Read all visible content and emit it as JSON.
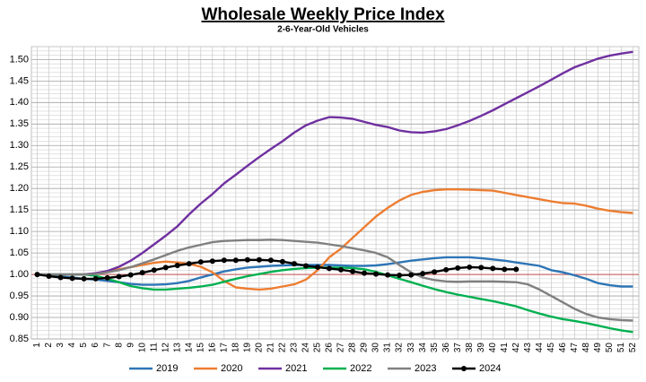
{
  "chart_data": {
    "type": "line",
    "title": "Wholesale Weekly Price Index",
    "subtitle": "2-6-Year-Old Vehicles",
    "x": [
      1,
      2,
      3,
      4,
      5,
      6,
      7,
      8,
      9,
      10,
      11,
      12,
      13,
      14,
      15,
      16,
      17,
      18,
      19,
      20,
      21,
      22,
      23,
      24,
      25,
      26,
      27,
      28,
      29,
      30,
      31,
      32,
      33,
      34,
      35,
      36,
      37,
      38,
      39,
      40,
      41,
      42,
      43,
      44,
      45,
      46,
      47,
      48,
      49,
      50,
      51,
      52
    ],
    "ylim": [
      0.85,
      1.53
    ],
    "yticks": [
      0.85,
      {
        "value": 0.9,
        "label": "0.90"
      },
      0.95,
      {
        "value": 1,
        "label": "1.00"
      },
      1.05,
      {
        "value": 1.1,
        "label": "1.10"
      },
      1.15,
      {
        "value": 1.2,
        "label": "1.20"
      },
      1.25,
      {
        "value": 1.3,
        "label": "1.30"
      },
      1.35,
      {
        "value": 1.4,
        "label": "1.40"
      },
      1.45,
      {
        "value": 1.5,
        "label": "1.50"
      }
    ],
    "grid": true,
    "minor_grid": true,
    "reference_line": 1,
    "reference_color": "#c0504d",
    "legend": "bottom",
    "series": [
      {
        "name": "2019",
        "color": "#2e75b6",
        "values": [
          1,
          0.998,
          0.995,
          0.993,
          0.99,
          0.988,
          0.985,
          0.982,
          0.978,
          0.976,
          0.976,
          0.977,
          0.98,
          0.985,
          0.993,
          1.0,
          1.007,
          1.012,
          1.016,
          1.018,
          1.02,
          1.021,
          1.022,
          1.022,
          1.022,
          1.022,
          1.021,
          1.02,
          1.02,
          1.021,
          1.024,
          1.028,
          1.032,
          1.035,
          1.038,
          1.04,
          1.04,
          1.04,
          1.038,
          1.035,
          1.032,
          1.028,
          1.024,
          1.02,
          1.01,
          1.005,
          0.998,
          0.99,
          0.98,
          0.975,
          0.972,
          0.972
        ]
      },
      {
        "name": "2020",
        "color": "#ed7d31",
        "values": [
          1,
          1,
          1,
          1,
          1,
          1.003,
          1.007,
          1.012,
          1.017,
          1.022,
          1.027,
          1.03,
          1.028,
          1.025,
          1.018,
          1.005,
          0.985,
          0.97,
          0.967,
          0.965,
          0.967,
          0.972,
          0.977,
          0.988,
          1.01,
          1.04,
          1.06,
          1.085,
          1.11,
          1.135,
          1.155,
          1.172,
          1.185,
          1.192,
          1.196,
          1.198,
          1.198,
          1.197,
          1.196,
          1.195,
          1.19,
          1.185,
          1.18,
          1.175,
          1.17,
          1.166,
          1.165,
          1.16,
          1.153,
          1.148,
          1.145,
          1.143
        ]
      },
      {
        "name": "2021",
        "color": "#7030a0",
        "values": [
          1,
          1,
          1,
          1,
          1,
          1.003,
          1.008,
          1.018,
          1.032,
          1.05,
          1.07,
          1.09,
          1.112,
          1.14,
          1.165,
          1.187,
          1.212,
          1.232,
          1.253,
          1.273,
          1.292,
          1.31,
          1.33,
          1.347,
          1.358,
          1.366,
          1.365,
          1.362,
          1.355,
          1.348,
          1.343,
          1.335,
          1.331,
          1.33,
          1.333,
          1.338,
          1.347,
          1.357,
          1.369,
          1.382,
          1.396,
          1.41,
          1.424,
          1.438,
          1.453,
          1.468,
          1.482,
          1.492,
          1.502,
          1.509,
          1.514,
          1.518
        ]
      },
      {
        "name": "2022",
        "color": "#00b050",
        "values": [
          1,
          1,
          1,
          1,
          1,
          0.997,
          0.99,
          0.982,
          0.973,
          0.968,
          0.965,
          0.965,
          0.967,
          0.969,
          0.972,
          0.976,
          0.983,
          0.99,
          0.996,
          1.001,
          1.006,
          1.01,
          1.013,
          1.015,
          1.016,
          1.016,
          1.016,
          1.015,
          1.012,
          1.006,
          0.998,
          0.99,
          0.982,
          0.974,
          0.966,
          0.959,
          0.953,
          0.948,
          0.943,
          0.938,
          0.932,
          0.926,
          0.917,
          0.909,
          0.902,
          0.896,
          0.892,
          0.887,
          0.881,
          0.875,
          0.87,
          0.866
        ]
      },
      {
        "name": "2023",
        "color": "#808080",
        "values": [
          1,
          1,
          1,
          1,
          1,
          1.001,
          1.005,
          1.01,
          1.017,
          1.026,
          1.035,
          1.045,
          1.055,
          1.063,
          1.069,
          1.075,
          1.078,
          1.079,
          1.08,
          1.08,
          1.081,
          1.08,
          1.078,
          1.076,
          1.074,
          1.07,
          1.066,
          1.061,
          1.056,
          1.05,
          1.04,
          1.022,
          1.005,
          0.993,
          0.987,
          0.984,
          0.983,
          0.984,
          0.984,
          0.984,
          0.983,
          0.982,
          0.977,
          0.965,
          0.95,
          0.935,
          0.92,
          0.908,
          0.9,
          0.896,
          0.894,
          0.893
        ]
      },
      {
        "name": "2024",
        "color": "#000000",
        "markers": true,
        "values": [
          1,
          0.996,
          0.993,
          0.991,
          0.99,
          0.99,
          0.992,
          0.995,
          0.999,
          1.004,
          1.01,
          1.016,
          1.021,
          1.025,
          1.029,
          1.031,
          1.033,
          1.033,
          1.034,
          1.034,
          1.033,
          1.03,
          1.025,
          1.02,
          1.017,
          1.014,
          1.011,
          1.007,
          1.003,
          1.001,
          0.999,
          0.998,
          0.999,
          1.002,
          1.006,
          1.011,
          1.015,
          1.017,
          1.016,
          1.014,
          1.012,
          1.012,
          null,
          null,
          null,
          null,
          null,
          null,
          null,
          null,
          null,
          null
        ]
      }
    ]
  }
}
